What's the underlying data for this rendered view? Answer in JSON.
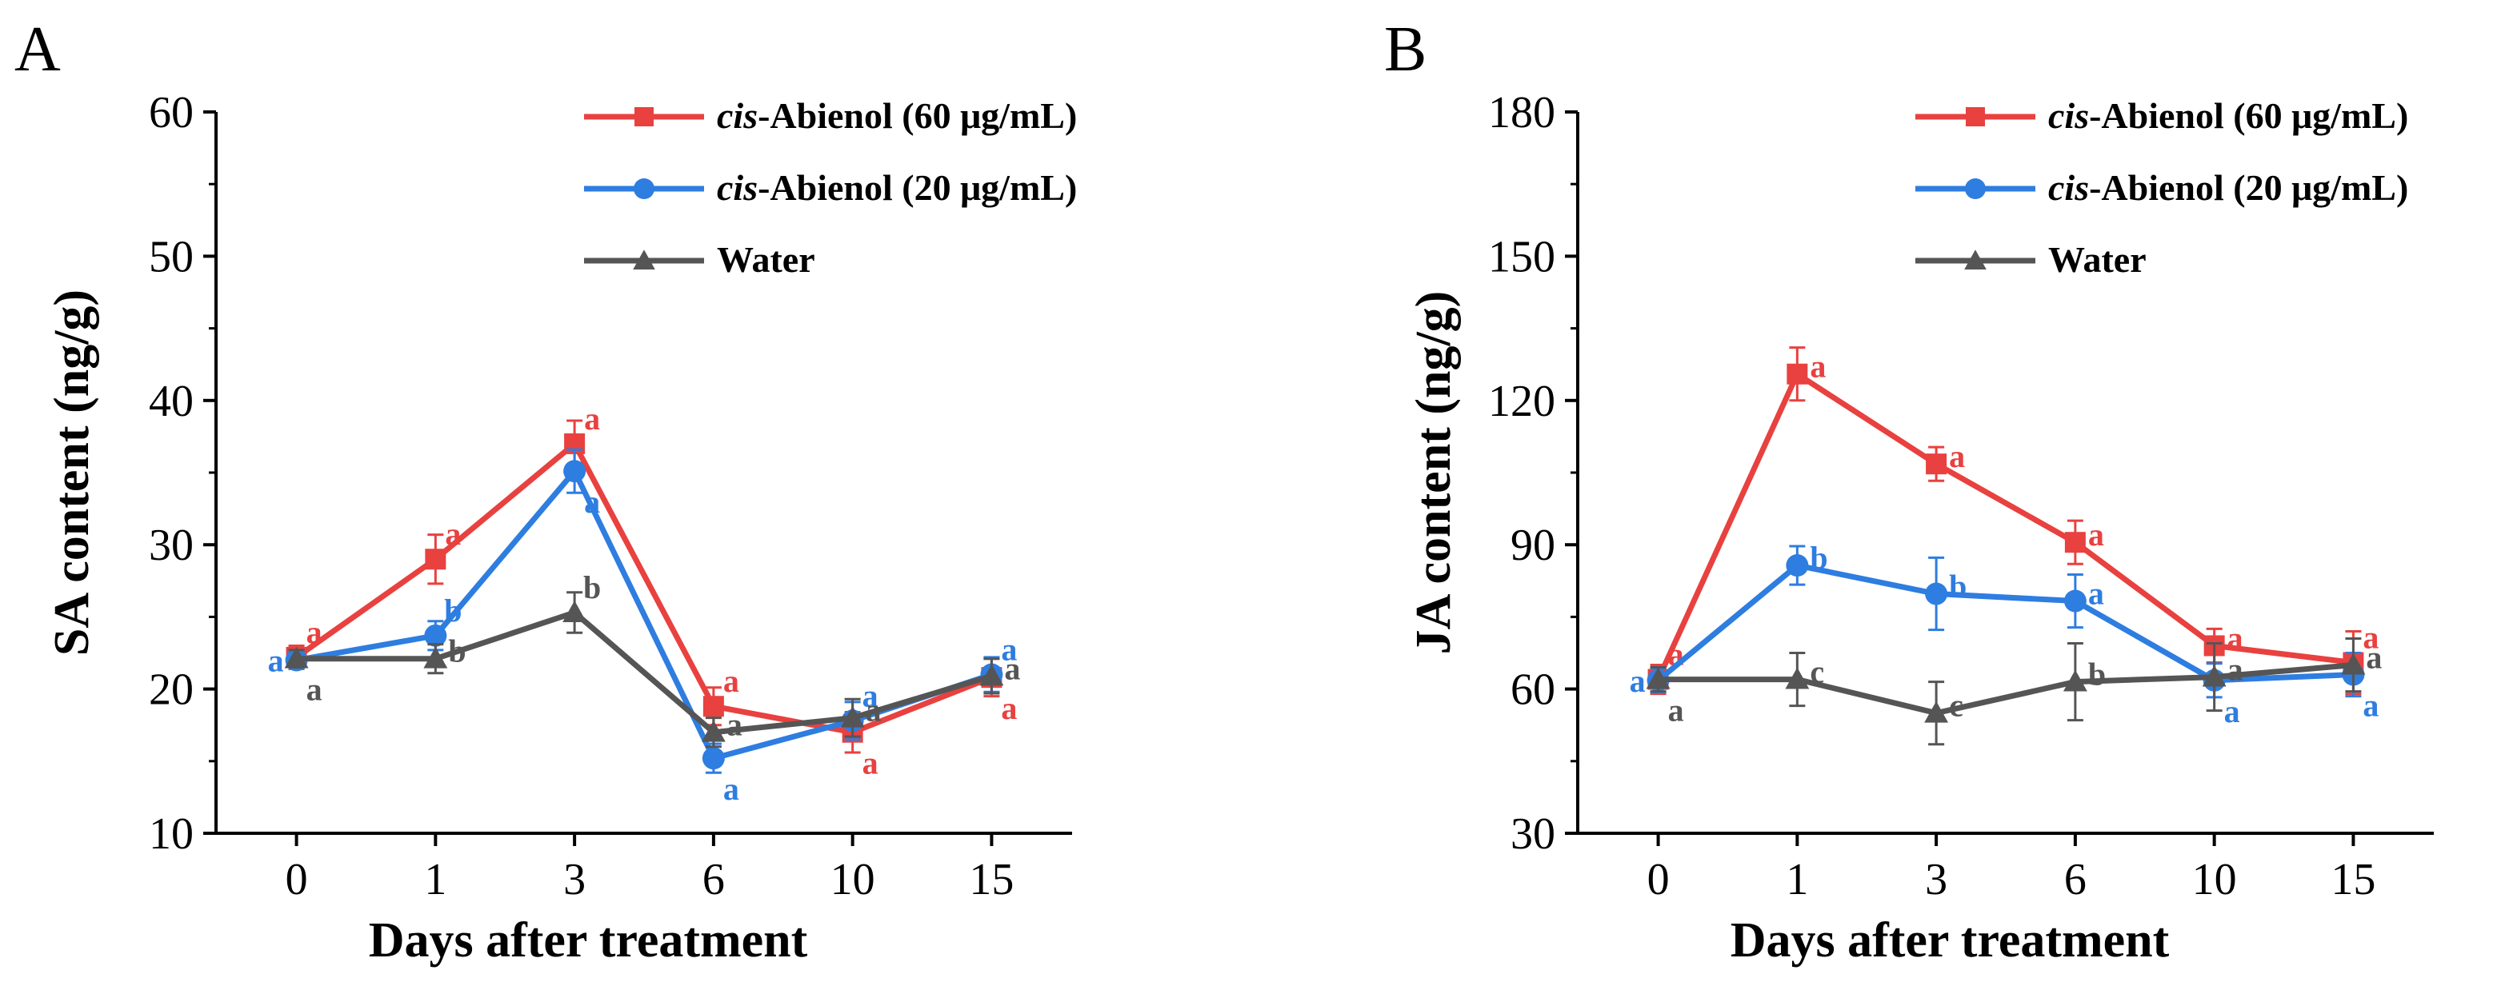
{
  "chart_data": [
    {
      "type": "line",
      "panel": "A",
      "title": "",
      "xlabel": "Days after treatment",
      "ylabel": "SA content (ng/g)",
      "categories": [
        "0",
        "1",
        "3",
        "6",
        "10",
        "15"
      ],
      "ylim": [
        10,
        60
      ],
      "yticks": [
        10,
        20,
        30,
        40,
        50,
        60
      ],
      "legend_position": "top-right",
      "series": [
        {
          "name_italic": "cis",
          "name_rest": "-Abienol (60 μg/mL)",
          "color": "#e8413f",
          "marker": "square",
          "values": [
            22.2,
            29.0,
            37.0,
            18.8,
            17.0,
            20.8
          ],
          "errors": [
            0.8,
            1.7,
            1.6,
            1.3,
            1.4,
            1.3
          ],
          "letters": [
            "a",
            "a",
            "a",
            "a",
            "a",
            "a"
          ],
          "letter_side": [
            "above",
            "above",
            "above",
            "above",
            "below",
            "below"
          ]
        },
        {
          "name_italic": "cis",
          "name_rest": "-Abienol (20 μg/mL)",
          "color": "#2e7de0",
          "marker": "circle",
          "values": [
            22.0,
            23.7,
            35.1,
            15.2,
            17.8,
            21.0
          ],
          "errors": [
            0.6,
            1.0,
            1.5,
            1.0,
            1.3,
            1.2
          ],
          "letters": [
            "a",
            "b",
            "a",
            "a",
            "a",
            "a"
          ],
          "letter_side": [
            "left",
            "above",
            "below",
            "below",
            "above",
            "above"
          ]
        },
        {
          "name_italic": "",
          "name_rest": "Water",
          "color": "#555555",
          "marker": "triangle",
          "values": [
            22.1,
            22.1,
            25.3,
            17.0,
            18.0,
            20.9
          ],
          "errors": [
            0.6,
            1.0,
            1.4,
            1.0,
            1.3,
            1.2
          ],
          "letters": [
            "a",
            "b",
            "b",
            "a",
            "a",
            "a"
          ],
          "letter_side": [
            "below",
            "right",
            "above",
            "right",
            "right",
            "right"
          ]
        }
      ]
    },
    {
      "type": "line",
      "panel": "B",
      "title": "",
      "xlabel": "Days after treatment",
      "ylabel": "JA content (ng/g)",
      "categories": [
        "0",
        "1",
        "3",
        "6",
        "10",
        "15"
      ],
      "ylim": [
        30,
        180
      ],
      "yticks": [
        30,
        60,
        90,
        120,
        150,
        180
      ],
      "legend_position": "top-right",
      "series": [
        {
          "name_italic": "cis",
          "name_rest": "-Abienol (60 μg/mL)",
          "color": "#e8413f",
          "marker": "square",
          "values": [
            62.0,
            125.5,
            106.8,
            90.5,
            69.0,
            65.5
          ],
          "errors": [
            3.0,
            5.5,
            3.5,
            4.5,
            3.5,
            6.5
          ],
          "letters": [
            "a",
            "a",
            "a",
            "a",
            "a",
            "a"
          ],
          "letter_side": [
            "above",
            "right",
            "right",
            "right",
            "right",
            "above"
          ]
        },
        {
          "name_italic": "cis",
          "name_rest": "-Abienol (20 μg/mL)",
          "color": "#2e7de0",
          "marker": "circle",
          "values": [
            61.8,
            85.7,
            79.8,
            78.3,
            61.8,
            63.0
          ],
          "errors": [
            2.5,
            4.0,
            7.5,
            5.5,
            3.5,
            4.5
          ],
          "letters": [
            "a",
            "b",
            "b",
            "a",
            "a",
            "a"
          ],
          "letter_side": [
            "left",
            "right",
            "right",
            "right",
            "below",
            "below"
          ]
        },
        {
          "name_italic": "",
          "name_rest": "Water",
          "color": "#555555",
          "marker": "triangle",
          "values": [
            62.0,
            62.0,
            55.0,
            61.5,
            62.5,
            65.0
          ],
          "errors": [
            2.5,
            5.5,
            6.5,
            8.0,
            7.0,
            5.5
          ],
          "letters": [
            "a",
            "c",
            "c",
            "b",
            "a",
            "a"
          ],
          "letter_side": [
            "below",
            "right",
            "right",
            "right",
            "right",
            "right"
          ]
        }
      ]
    }
  ]
}
